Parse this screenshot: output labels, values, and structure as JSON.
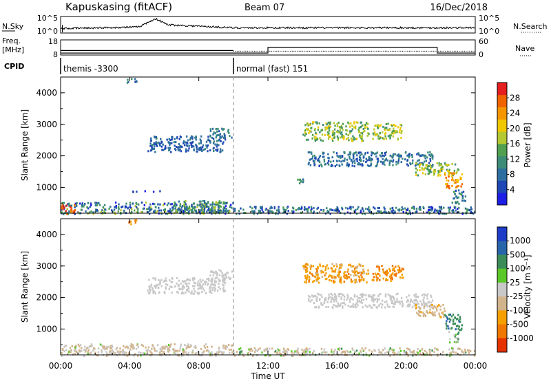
{
  "header": {
    "station": "Kapuskasing (fitACF)",
    "beam": "Beam 07",
    "date": "16/Dec/2018"
  },
  "top_panels": {
    "nsky_label": "N.Sky",
    "nsky_ticks": [
      "10^5",
      "10^0"
    ],
    "nsearch_label": "N.Search",
    "nsearch_ticks": [
      "10^5",
      "10^0"
    ],
    "freq_label_1": "Freq.",
    "freq_label_2": "[MHz]",
    "freq_ticks": [
      "18",
      "8"
    ],
    "nave_label": "Nave",
    "nave_ticks": [
      "60",
      "0"
    ],
    "cpid_label": "CPID",
    "cpid_segments": [
      {
        "label": "themis -3300",
        "start_hour": 0,
        "end_hour": 10
      },
      {
        "label": "normal (fast) 151",
        "start_hour": 10,
        "end_hour": 24
      }
    ]
  },
  "colors": {
    "power": [
      "#1e1ee6",
      "#1e46b4",
      "#2d6ea0",
      "#3c8c78",
      "#50a050",
      "#b4c832",
      "#f0c800",
      "#f59600",
      "#f06400",
      "#e61e1e"
    ],
    "velocity": [
      "#1e3cc8",
      "#2864aa",
      "#3c8c5a",
      "#5ac828",
      "#c8c8c8",
      "#d2b48c",
      "#f5a000",
      "#f07800",
      "#e63200"
    ],
    "ground": "#aa9464",
    "accent": "#d2b43c"
  },
  "axes": {
    "x_ticks": [
      "00:00",
      "04:00",
      "08:00",
      "12:00",
      "16:00",
      "20:00",
      "00:00"
    ],
    "x_title": "Time UT",
    "y_title": "Slant Range [km]",
    "y_ticks": [
      "1000",
      "2000",
      "3000",
      "4000"
    ]
  },
  "power_bar": {
    "title": "Power [dB]",
    "ticks": [
      "4",
      "8",
      "12",
      "16",
      "20",
      "24",
      "28"
    ]
  },
  "velocity_bar": {
    "title": "Velocity  [m s⁻¹]",
    "ticks": [
      "1000",
      "500",
      "100",
      "25",
      "-25",
      "-100",
      "-500",
      "-1000"
    ]
  },
  "chart_data": {
    "type": "heatmap",
    "x_range_hours": [
      0,
      24
    ],
    "y_range_km": [
      180,
      4500
    ],
    "x_unit": "hours UT",
    "y_unit": "km",
    "power_range_db": [
      0,
      32
    ],
    "mode_change_hour": 10,
    "power_patches": [
      {
        "t0": 0.0,
        "t1": 10.0,
        "r0": 180,
        "r1": 550,
        "p": 10,
        "spread": 8
      },
      {
        "t0": 0.0,
        "t1": 0.8,
        "r0": 180,
        "r1": 500,
        "p": 28,
        "spread": 3
      },
      {
        "t0": 6.5,
        "t1": 9.5,
        "r0": 200,
        "r1": 600,
        "p": 12,
        "spread": 6
      },
      {
        "t0": 10.0,
        "t1": 24.0,
        "r0": 180,
        "r1": 420,
        "p": 8,
        "spread": 6
      },
      {
        "t0": 5.0,
        "t1": 9.5,
        "r0": 2150,
        "r1": 2650,
        "p": 7,
        "spread": 3
      },
      {
        "t0": 8.6,
        "t1": 9.9,
        "r0": 2600,
        "r1": 2900,
        "p": 9,
        "spread": 3
      },
      {
        "t0": 14.0,
        "t1": 17.8,
        "r0": 2500,
        "r1": 3100,
        "p": 16,
        "spread": 5
      },
      {
        "t0": 18.0,
        "t1": 19.8,
        "r0": 2550,
        "r1": 3050,
        "p": 17,
        "spread": 5
      },
      {
        "t0": 14.3,
        "t1": 21.5,
        "r0": 1700,
        "r1": 2150,
        "p": 8,
        "spread": 4
      },
      {
        "t0": 20.5,
        "t1": 23.0,
        "r0": 1400,
        "r1": 1800,
        "p": 16,
        "spread": 6
      },
      {
        "t0": 22.2,
        "t1": 23.2,
        "r0": 1000,
        "r1": 1500,
        "p": 24,
        "spread": 5
      },
      {
        "t0": 22.6,
        "t1": 23.4,
        "r0": 500,
        "r1": 950,
        "p": 10,
        "spread": 5
      },
      {
        "t0": 13.6,
        "t1": 14.1,
        "r0": 1100,
        "r1": 1300,
        "p": 10,
        "spread": 4
      },
      {
        "t0": 3.8,
        "t1": 4.4,
        "r0": 4350,
        "r1": 4500,
        "p": 8,
        "spread": 3
      },
      {
        "t0": 4.0,
        "t1": 5.8,
        "r0": 880,
        "r1": 920,
        "p": 4,
        "spread": 2
      }
    ],
    "velocity_patches": [
      {
        "t0": 0.0,
        "t1": 10.0,
        "r0": 180,
        "r1": 550,
        "v": -30,
        "spread": 60
      },
      {
        "t0": 10.0,
        "t1": 24.0,
        "r0": 180,
        "r1": 420,
        "v": -15,
        "spread": 80
      },
      {
        "t0": 5.0,
        "t1": 9.5,
        "r0": 2150,
        "r1": 2650,
        "v": 0,
        "spread": 15
      },
      {
        "t0": 8.6,
        "t1": 9.9,
        "r0": 2600,
        "r1": 2900,
        "v": 0,
        "spread": 15
      },
      {
        "t0": 14.0,
        "t1": 17.8,
        "r0": 2500,
        "r1": 3100,
        "v": -200,
        "spread": 150
      },
      {
        "t0": 18.0,
        "t1": 19.8,
        "r0": 2550,
        "r1": 3050,
        "v": -300,
        "spread": 200
      },
      {
        "t0": 14.3,
        "t1": 21.5,
        "r0": 1700,
        "r1": 2150,
        "v": 0,
        "spread": 20
      },
      {
        "t0": 20.5,
        "t1": 22.2,
        "r0": 1400,
        "r1": 1800,
        "v": -80,
        "spread": 40
      },
      {
        "t0": 22.2,
        "t1": 23.2,
        "r0": 1000,
        "r1": 1500,
        "v": 80,
        "spread": 40
      },
      {
        "t0": 22.4,
        "t1": 23.0,
        "r0": 600,
        "r1": 950,
        "v": 30,
        "spread": 60
      },
      {
        "t0": 3.8,
        "t1": 4.4,
        "r0": 4350,
        "r1": 4500,
        "v": -300,
        "spread": 100
      }
    ],
    "nsky_profile": [
      {
        "t": 0.0,
        "v": 0.25
      },
      {
        "t": 4.5,
        "v": 0.35
      },
      {
        "t": 5.5,
        "v": 0.9
      },
      {
        "t": 6.2,
        "v": 0.5
      },
      {
        "t": 10.0,
        "v": 0.3
      },
      {
        "t": 24.0,
        "v": 0.3
      }
    ],
    "freq_mhz": [
      {
        "t0": 0.0,
        "t1": 10.0,
        "f": 11.0
      },
      {
        "t0": 10.0,
        "t1": 24.0,
        "f": 10.5
      }
    ],
    "nave_steps": [
      {
        "t0": 0.0,
        "t1": 12.0,
        "n": 8
      },
      {
        "t0": 12.0,
        "t1": 21.8,
        "n": 30
      },
      {
        "t0": 21.8,
        "t1": 24.0,
        "n": 8
      }
    ]
  }
}
